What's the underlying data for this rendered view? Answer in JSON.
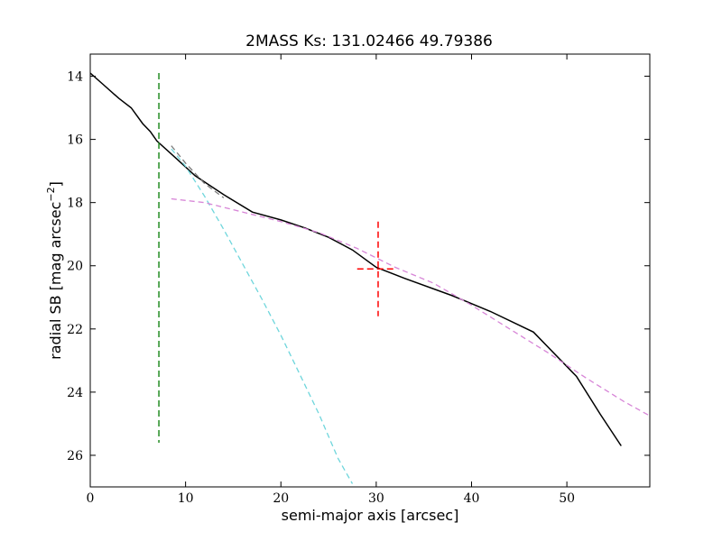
{
  "chart_data": {
    "type": "line",
    "title": "2MASS Ks: 131.02466 49.79386",
    "xlabel": "semi-major axis [arcsec]",
    "ylabel_main": "radial SB [mag arcsec",
    "ylabel_sup": "−2",
    "ylabel_close": "]",
    "xlim": [
      0,
      58.7
    ],
    "ylim": [
      27,
      13.3
    ],
    "y_inverted": true,
    "grid": false,
    "xticks": [
      0,
      10,
      20,
      30,
      40,
      50
    ],
    "yticks": [
      14,
      16,
      18,
      20,
      22,
      24,
      26
    ],
    "series": [
      {
        "style": "solid",
        "color": "#000000",
        "x": [
          0,
          1.5,
          3,
          4.3,
          5.5,
          6.3,
          7.0,
          9.0,
          11.0,
          14.0,
          17.0,
          20.0,
          22.5,
          25.0,
          27.5,
          30.0,
          33.0,
          38.0,
          42.0,
          46.5,
          51.0,
          53.5,
          55.7
        ],
        "y": [
          13.9,
          14.3,
          14.7,
          15.0,
          15.5,
          15.75,
          16.05,
          16.6,
          17.15,
          17.75,
          18.3,
          18.55,
          18.8,
          19.1,
          19.5,
          20.05,
          20.4,
          20.95,
          21.45,
          22.1,
          23.5,
          24.7,
          25.7
        ]
      },
      {
        "style": "dashed",
        "color": "#7a7a7a",
        "x": [
          8.5,
          10,
          12,
          14
        ],
        "y": [
          16.2,
          16.75,
          17.4,
          17.85
        ]
      },
      {
        "style": "dashed",
        "color": "#6fd6dc",
        "x": [
          8.5,
          10,
          12,
          14,
          16,
          18,
          20,
          22,
          24,
          26,
          27.5
        ],
        "y": [
          16.3,
          16.85,
          17.8,
          18.85,
          19.95,
          21.05,
          22.2,
          23.45,
          24.7,
          26.1,
          26.9
        ]
      },
      {
        "style": "dashed",
        "color": "#d785d7",
        "x": [
          8.5,
          12,
          16,
          20,
          24,
          28,
          32,
          36,
          40,
          44,
          48,
          52,
          56,
          58.7
        ],
        "y": [
          17.88,
          18.0,
          18.3,
          18.6,
          18.95,
          19.45,
          20.05,
          20.55,
          21.25,
          22.0,
          22.75,
          23.55,
          24.3,
          24.75
        ]
      }
    ],
    "vertical_line": {
      "x": 7.2,
      "y_range": [
        13.9,
        25.6
      ],
      "color": "#228b22"
    },
    "marker": {
      "x": 30.2,
      "y": 20.1,
      "y_range": [
        18.6,
        21.6
      ],
      "x_range": [
        28.0,
        32.0
      ],
      "color": "#ff0000"
    }
  }
}
